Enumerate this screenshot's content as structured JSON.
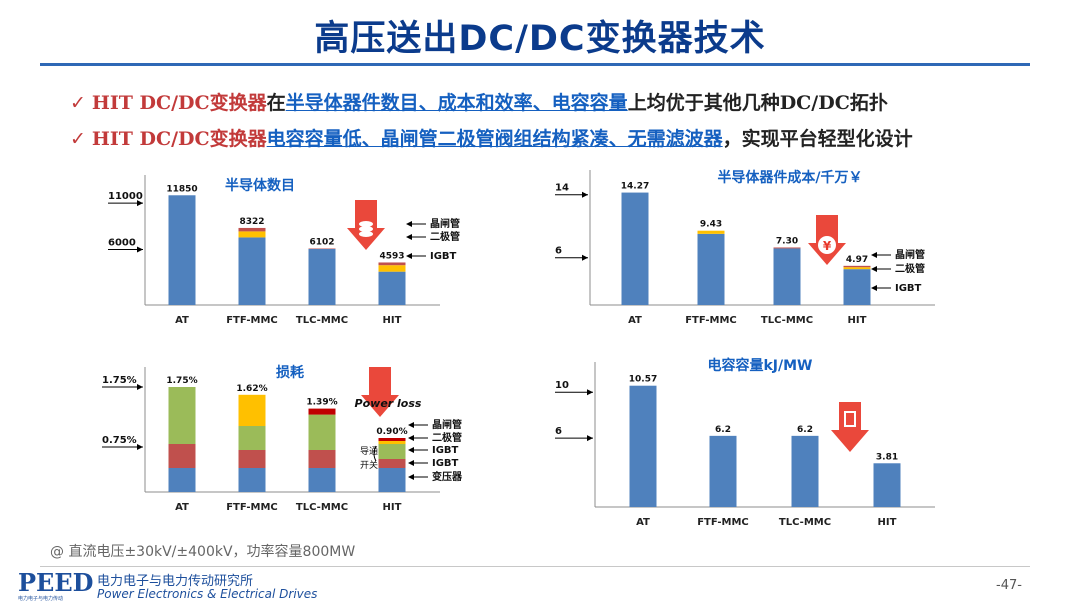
{
  "title": "高压送出DC/DC变换器技术",
  "bullets": [
    {
      "check": "✓",
      "red": "HIT DC/DC变换器",
      "dark1": "在",
      "blue1": "半导体器件数目、成本和效率、电容容量",
      "dark2": "上均优于其他几种DC/DC拓扑"
    },
    {
      "check": "✓",
      "red": "HIT DC/DC变换器",
      "blue1": "电容容量低、晶闸管二极管阀组结构紧凑、无需滤波器",
      "dark2": "，实现平台轻型化设计"
    }
  ],
  "colors": {
    "blue": "#4f81bd",
    "yellow": "#ffc000",
    "green": "#9bbb59",
    "red": "#c0504d",
    "arrow": "#e8382a"
  },
  "chart_data": [
    {
      "type": "bar",
      "title": "半导体数目",
      "categories": [
        "AT",
        "FTF-MMC",
        "TLC-MMC",
        "HIT"
      ],
      "totals": [
        "11850",
        "8322",
        "6102",
        "4593"
      ],
      "stack": [
        [
          11850,
          0,
          0
        ],
        [
          7300,
          650,
          372
        ],
        [
          6050,
          0,
          52
        ],
        [
          3600,
          700,
          293
        ]
      ],
      "series_colors": [
        "#4f81bd",
        "#ffc000",
        "#c0504d"
      ],
      "yticks": [
        "11000",
        "6000"
      ],
      "ytick_values": [
        11000,
        6000
      ],
      "ylim": [
        0,
        13500
      ],
      "annotations": [
        "晶闸管",
        "二极管",
        "IGBT"
      ],
      "icon": "coin-stack-icon"
    },
    {
      "type": "bar",
      "title": "半导体器件成本/千万￥",
      "categories": [
        "AT",
        "FTF-MMC",
        "TLC-MMC",
        "HIT"
      ],
      "totals": [
        "14.27",
        "9.43",
        "7.30",
        "4.97"
      ],
      "stack": [
        [
          14.27,
          0,
          0
        ],
        [
          9.03,
          0.4,
          0
        ],
        [
          7.18,
          0,
          0.12
        ],
        [
          4.55,
          0.25,
          0.17
        ]
      ],
      "series_colors": [
        "#4f81bd",
        "#ffc000",
        "#c0504d"
      ],
      "yticks": [
        "14",
        "6"
      ],
      "ytick_values": [
        14,
        6
      ],
      "ylim": [
        0,
        16.5
      ],
      "annotations": [
        "晶闸管",
        "二极管",
        "IGBT"
      ],
      "icon": "yen-icon"
    },
    {
      "type": "bar",
      "title": "损耗",
      "categories": [
        "AT",
        "FTF-MMC",
        "TLC-MMC",
        "HIT"
      ],
      "totals": [
        "1.75%",
        "1.62%",
        "1.39%",
        "0.90%"
      ],
      "stack": [
        [
          0.4,
          0.4,
          0.95,
          0,
          0
        ],
        [
          0.4,
          0.3,
          0.4,
          0.52,
          0
        ],
        [
          0.4,
          0.3,
          0.59,
          0,
          0.1
        ],
        [
          0.4,
          0.15,
          0.25,
          0.05,
          0.05
        ]
      ],
      "series_colors": [
        "#4f81bd",
        "#c0504d",
        "#9bbb59",
        "#ffc000",
        "#c00000"
      ],
      "yticks": [
        "1.75%",
        "0.75%"
      ],
      "ytick_values": [
        1.75,
        0.75
      ],
      "ylim": [
        0,
        2.0
      ],
      "annotations": [
        "晶闸管",
        "二极管",
        "IGBT",
        "IGBT",
        "变压器"
      ],
      "side_labels": [
        "导通",
        "开关"
      ],
      "arrow_label": "Power loss"
    },
    {
      "type": "bar",
      "title": "电容容量kJ/MW",
      "categories": [
        "AT",
        "FTF-MMC",
        "TLC-MMC",
        "HIT"
      ],
      "totals": [
        "10.57",
        "6.2",
        "6.2",
        "3.81"
      ],
      "stack": [
        [
          10.57
        ],
        [
          6.2
        ],
        [
          6.2
        ],
        [
          3.81
        ]
      ],
      "series_colors": [
        "#4f81bd"
      ],
      "yticks": [
        "10",
        "6"
      ],
      "ytick_values": [
        10,
        6
      ],
      "ylim": [
        0,
        12.2
      ],
      "annotations": [],
      "icon": "capacitor-icon"
    }
  ],
  "note": "@ 直流电压±30kV/±400kV，功率容量800MW",
  "footer": {
    "logo_text": "PEED",
    "logo_subtext": "电力电子与电力传动",
    "org_cn": "电力电子与电力传动研究所",
    "org_en": "Power Electronics & Electrical Drives",
    "page": "-47-"
  }
}
